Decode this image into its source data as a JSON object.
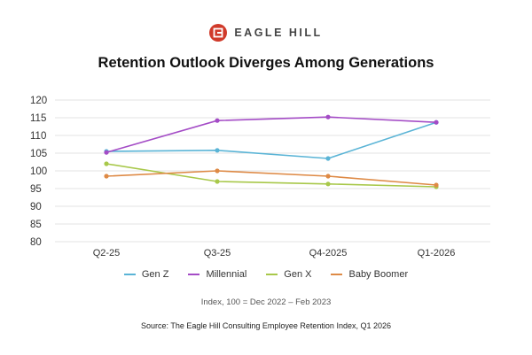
{
  "brand": {
    "name": "EAGLE HILL",
    "logo_icon": "eagle-hill-logo-icon",
    "logo_color": "#d03a2a"
  },
  "chart_data": {
    "type": "line",
    "title": "Retention Outlook Diverges Among Generations",
    "categories": [
      "Q2-25",
      "Q3-25",
      "Q4-2025",
      "Q1-2026"
    ],
    "yticks": [
      80,
      85,
      90,
      95,
      100,
      105,
      110,
      115,
      120
    ],
    "ylim": [
      80,
      120
    ],
    "xlabel": "",
    "ylabel": "",
    "grid": true,
    "legend_position": "bottom",
    "series": [
      {
        "name": "Gen Z",
        "color": "#5ab4d6",
        "values": [
          105.5,
          105.8,
          103.5,
          113.7
        ]
      },
      {
        "name": "Millennial",
        "color": "#a44cc6",
        "values": [
          105.2,
          114.2,
          115.2,
          113.7
        ]
      },
      {
        "name": "Gen X",
        "color": "#a8c84a",
        "values": [
          102.0,
          97.0,
          96.3,
          95.5
        ]
      },
      {
        "name": "Baby Boomer",
        "color": "#de8a46",
        "values": [
          98.5,
          100.0,
          98.5,
          96.0
        ]
      }
    ]
  },
  "note": "Index, 100 = Dec 2022 – Feb 2023",
  "source": "Source: The Eagle Hill Consulting Employee Retention Index, Q1 2026"
}
